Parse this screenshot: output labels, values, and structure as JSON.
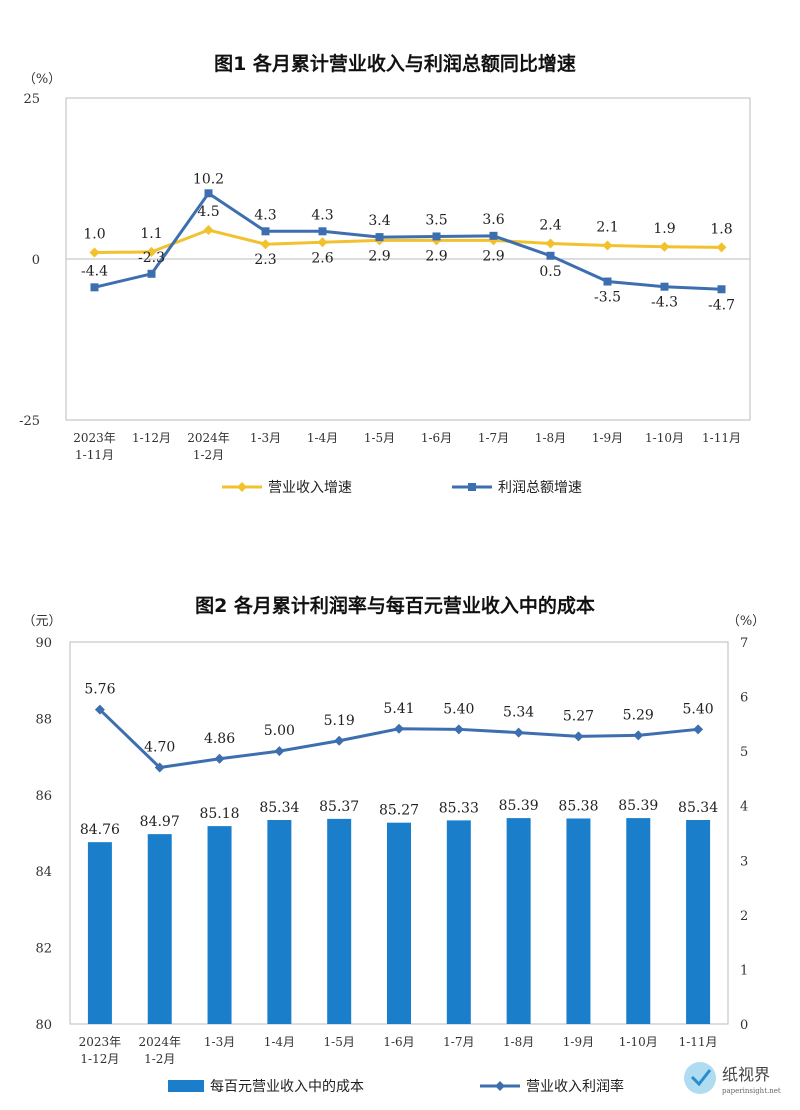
{
  "chart_data": [
    {
      "type": "line",
      "title": "图1  各月累计营业收入与利润总额同比增速",
      "y_unit": "（%）",
      "ylim": [
        -25,
        25
      ],
      "yticks": [
        {
          "v": 25,
          "label": "25"
        },
        {
          "v": 0,
          "label": "0"
        },
        {
          "v": -25,
          "label": "-25"
        }
      ],
      "categories": [
        [
          "2023年",
          "1-11月"
        ],
        [
          "1-12月"
        ],
        [
          "2024年",
          "1-2月"
        ],
        [
          "1-3月"
        ],
        [
          "1-4月"
        ],
        [
          "1-5月"
        ],
        [
          "1-6月"
        ],
        [
          "1-7月"
        ],
        [
          "1-8月"
        ],
        [
          "1-9月"
        ],
        [
          "1-10月"
        ],
        [
          "1-11月"
        ]
      ],
      "series": [
        {
          "name": "营业收入增速",
          "color": "#f2c12e",
          "values": [
            1.0,
            1.1,
            4.5,
            2.3,
            2.6,
            2.9,
            2.9,
            2.9,
            2.4,
            2.1,
            1.9,
            1.8
          ],
          "labels": [
            "1.0",
            "1.1",
            "4.5",
            "2.3",
            "2.6",
            "2.9",
            "2.9",
            "2.9",
            "2.4",
            "2.1",
            "1.9",
            "1.8"
          ]
        },
        {
          "name": "利润总额增速",
          "color": "#3d6fb0",
          "values": [
            -4.4,
            -2.3,
            10.2,
            4.3,
            4.3,
            3.4,
            3.5,
            3.6,
            0.5,
            -3.5,
            -4.3,
            -4.7
          ],
          "labels": [
            "-4.4",
            "-2.3",
            "10.2",
            "4.3",
            "4.3",
            "3.4",
            "3.5",
            "3.6",
            "0.5",
            "-3.5",
            "-4.3",
            "-4.7"
          ]
        }
      ],
      "legend_position": "bottom"
    },
    {
      "type": "bar+line",
      "title": "图2  各月累计利润率与每百元营业收入中的成本",
      "y_left_unit": "（元）",
      "y_right_unit": "（%）",
      "ylim_left": [
        80,
        90
      ],
      "ylim_right": [
        0,
        7
      ],
      "yticks_left": [
        "80",
        "82",
        "84",
        "86",
        "88",
        "90"
      ],
      "yticks_right": [
        "0",
        "1",
        "2",
        "3",
        "4",
        "5",
        "6",
        "7"
      ],
      "categories": [
        [
          "2023年",
          "1-12月"
        ],
        [
          "2024年",
          "1-2月"
        ],
        [
          "1-3月"
        ],
        [
          "1-4月"
        ],
        [
          "1-5月"
        ],
        [
          "1-6月"
        ],
        [
          "1-7月"
        ],
        [
          "1-8月"
        ],
        [
          "1-9月"
        ],
        [
          "1-10月"
        ],
        [
          "1-11月"
        ]
      ],
      "bar_series": {
        "name": "每百元营业收入中的成本",
        "color": "#1a7ecb",
        "values": [
          84.76,
          84.97,
          85.18,
          85.34,
          85.37,
          85.27,
          85.33,
          85.39,
          85.38,
          85.39,
          85.34
        ],
        "labels": [
          "84.76",
          "84.97",
          "85.18",
          "85.34",
          "85.37",
          "85.27",
          "85.33",
          "85.39",
          "85.38",
          "85.39",
          "85.34"
        ]
      },
      "line_series": {
        "name": "营业收入利润率",
        "color": "#3d6fb0",
        "values": [
          5.76,
          4.7,
          4.86,
          5.0,
          5.19,
          5.41,
          5.4,
          5.34,
          5.27,
          5.29,
          5.4
        ],
        "labels": [
          "5.76",
          "4.70",
          "4.86",
          "5.00",
          "5.19",
          "5.41",
          "5.40",
          "5.34",
          "5.27",
          "5.29",
          "5.40"
        ]
      },
      "legend_position": "bottom"
    }
  ],
  "watermark": {
    "text": "纸视界",
    "subtext": "paperinsight.net"
  }
}
